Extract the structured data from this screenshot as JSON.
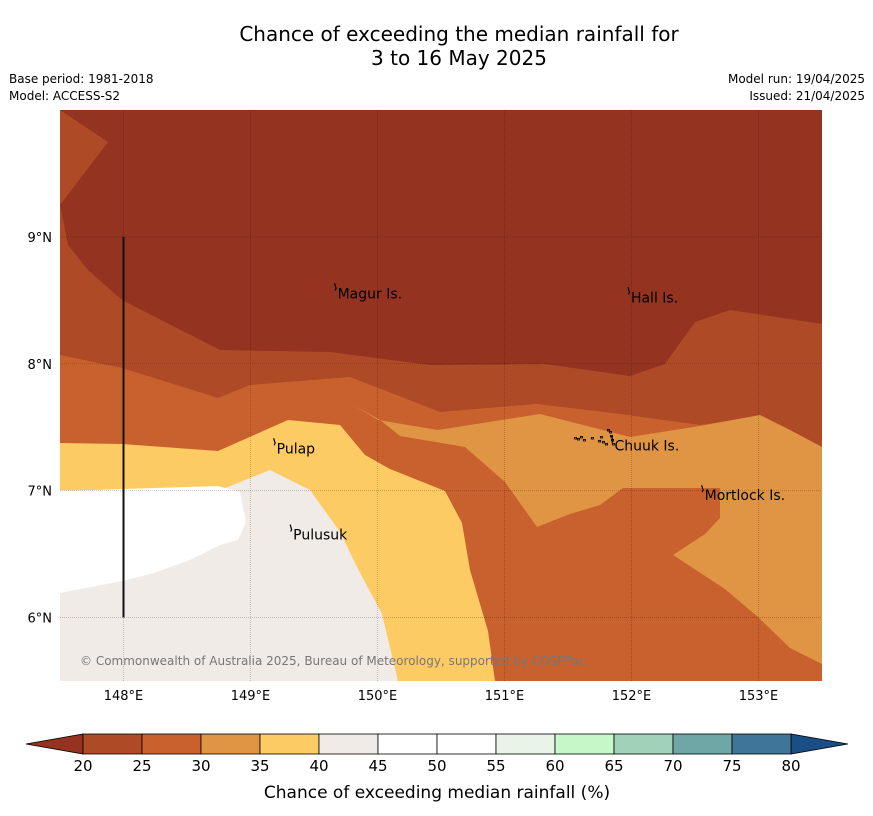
{
  "title_line1": "Chance of exceeding the median rainfall for",
  "title_line2": "3 to 16 May 2025",
  "meta_left": [
    "Base period: 1981-2018",
    "Model: ACCESS-S2"
  ],
  "meta_right": [
    "Model run: 19/04/2025",
    "Issued: 21/04/2025"
  ],
  "map": {
    "lon_range": [
      147.5,
      153.5
    ],
    "lat_range": [
      5.5,
      10.0
    ],
    "lon_ticks": [
      {
        "value": 148,
        "label": "148°E"
      },
      {
        "value": 149,
        "label": "149°E"
      },
      {
        "value": 150,
        "label": "150°E"
      },
      {
        "value": 151,
        "label": "151°E"
      },
      {
        "value": 152,
        "label": "152°E"
      },
      {
        "value": 153,
        "label": "153°E"
      }
    ],
    "lat_ticks": [
      {
        "value": 9,
        "label": "9°N"
      },
      {
        "value": 8,
        "label": "8°N"
      },
      {
        "value": 7,
        "label": "7°N"
      },
      {
        "value": 6,
        "label": "6°N"
      }
    ],
    "grid": true,
    "places": [
      {
        "name": "Magur Is.",
        "lon": 149.67,
        "lat": 8.57
      },
      {
        "name": "Hall Is.",
        "lon": 151.98,
        "lat": 8.54
      },
      {
        "name": "Pulap",
        "lon": 149.19,
        "lat": 7.35
      },
      {
        "name": "Chuuk Is.",
        "lon": 151.85,
        "lat": 7.37
      },
      {
        "name": "Mortlock Is.",
        "lon": 152.56,
        "lat": 6.98
      },
      {
        "name": "Pulusuk",
        "lon": 149.32,
        "lat": 6.67
      }
    ],
    "divider_line": {
      "lon": 148.0,
      "lat_from": 9.0,
      "lat_to": 6.0
    },
    "credit": "© Commonwealth of Australia 2025, Bureau of Meteorology, supported by COSPPac"
  },
  "legend": {
    "title": "Chance of exceeding median rainfall (%)",
    "ticks": [
      20,
      25,
      30,
      35,
      40,
      45,
      50,
      55,
      60,
      65,
      70,
      75,
      80
    ],
    "below_color": "#943320",
    "above_color": "#1b4d86",
    "bins": [
      {
        "from": 20,
        "to": 25,
        "color": "#af4a26"
      },
      {
        "from": 25,
        "to": 30,
        "color": "#c9612f"
      },
      {
        "from": 30,
        "to": 35,
        "color": "#e09544"
      },
      {
        "from": 35,
        "to": 40,
        "color": "#fdcb63"
      },
      {
        "from": 40,
        "to": 45,
        "color": "#f0ebe6"
      },
      {
        "from": 45,
        "to": 50,
        "color": "#ffffff"
      },
      {
        "from": 50,
        "to": 55,
        "color": "#ffffff"
      },
      {
        "from": 55,
        "to": 60,
        "color": "#e7f4e7"
      },
      {
        "from": 60,
        "to": 65,
        "color": "#c5f7c8"
      },
      {
        "from": 65,
        "to": 70,
        "color": "#9fd2b8"
      },
      {
        "from": 70,
        "to": 75,
        "color": "#6fa7a7"
      },
      {
        "from": 75,
        "to": 80,
        "color": "#3f7598"
      }
    ]
  }
}
